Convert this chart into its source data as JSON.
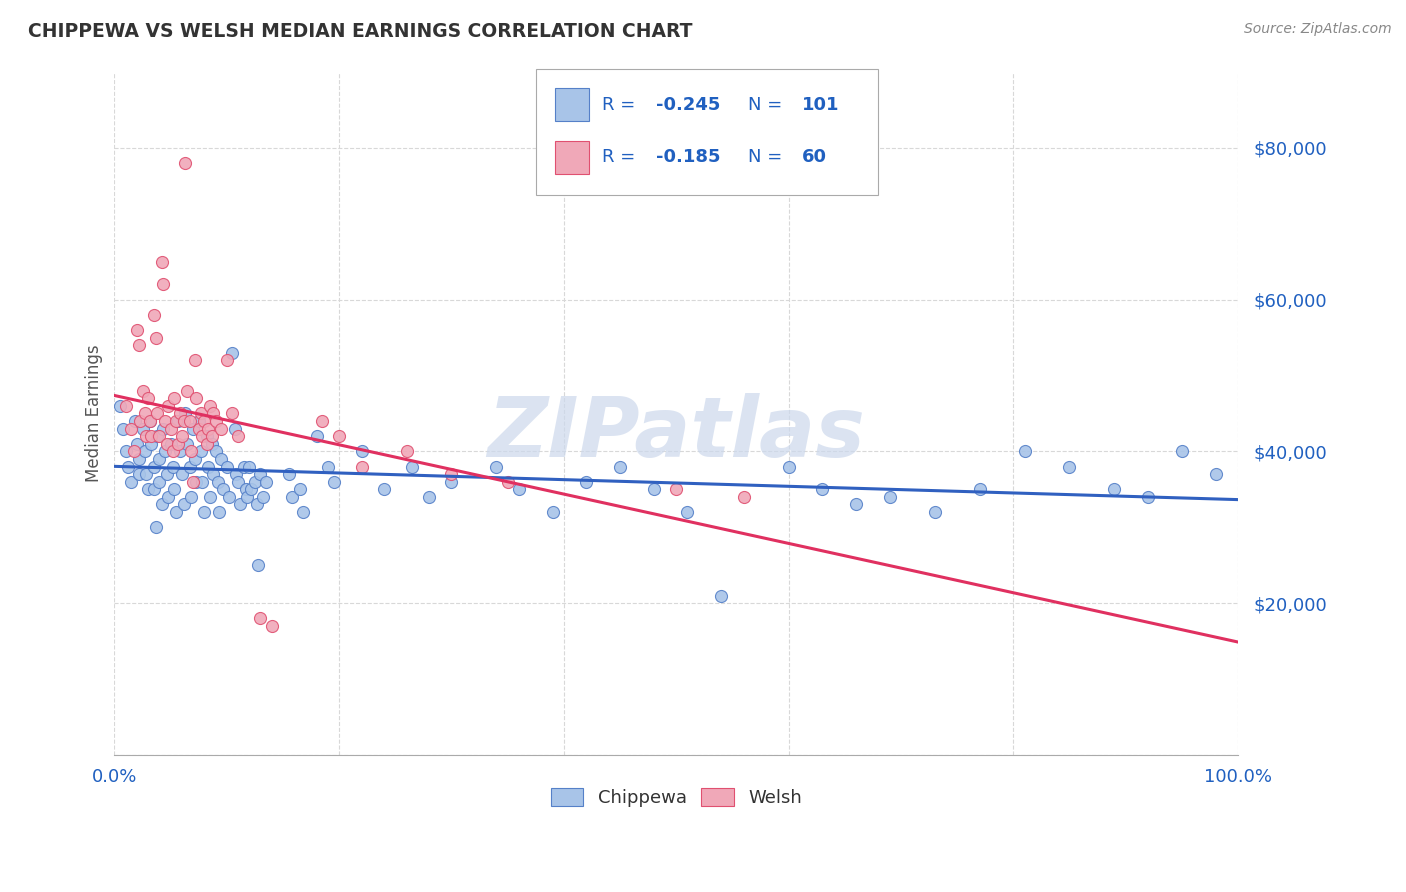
{
  "title": "CHIPPEWA VS WELSH MEDIAN EARNINGS CORRELATION CHART",
  "source": "Source: ZipAtlas.com",
  "ylabel": "Median Earnings",
  "background_color": "#ffffff",
  "grid_color": "#d8d8d8",
  "chippewa_fill": "#a8c4e8",
  "chippewa_edge": "#5580c8",
  "welsh_fill": "#f0a8b8",
  "welsh_edge": "#e05070",
  "chippewa_line_color": "#3060c0",
  "welsh_line_color": "#e03060",
  "title_color": "#333333",
  "source_color": "#888888",
  "ytick_color": "#2060c0",
  "xtick_color": "#2060c0",
  "watermark": "ZIPatlas",
  "watermark_color": "#ccd8ec",
  "chippewa_points": [
    [
      0.005,
      46000
    ],
    [
      0.008,
      43000
    ],
    [
      0.01,
      40000
    ],
    [
      0.012,
      38000
    ],
    [
      0.015,
      36000
    ],
    [
      0.018,
      44000
    ],
    [
      0.02,
      41000
    ],
    [
      0.022,
      39000
    ],
    [
      0.022,
      37000
    ],
    [
      0.025,
      43000
    ],
    [
      0.027,
      40000
    ],
    [
      0.028,
      37000
    ],
    [
      0.03,
      35000
    ],
    [
      0.032,
      44000
    ],
    [
      0.033,
      41000
    ],
    [
      0.035,
      38000
    ],
    [
      0.035,
      35000
    ],
    [
      0.037,
      30000
    ],
    [
      0.038,
      42000
    ],
    [
      0.04,
      39000
    ],
    [
      0.04,
      36000
    ],
    [
      0.042,
      33000
    ],
    [
      0.043,
      43000
    ],
    [
      0.045,
      40000
    ],
    [
      0.047,
      37000
    ],
    [
      0.048,
      34000
    ],
    [
      0.05,
      41000
    ],
    [
      0.052,
      38000
    ],
    [
      0.053,
      35000
    ],
    [
      0.055,
      32000
    ],
    [
      0.057,
      44000
    ],
    [
      0.058,
      40000
    ],
    [
      0.06,
      37000
    ],
    [
      0.062,
      33000
    ],
    [
      0.063,
      45000
    ],
    [
      0.065,
      41000
    ],
    [
      0.067,
      38000
    ],
    [
      0.068,
      34000
    ],
    [
      0.07,
      43000
    ],
    [
      0.072,
      39000
    ],
    [
      0.073,
      36000
    ],
    [
      0.075,
      44000
    ],
    [
      0.077,
      40000
    ],
    [
      0.078,
      36000
    ],
    [
      0.08,
      32000
    ],
    [
      0.082,
      42000
    ],
    [
      0.083,
      38000
    ],
    [
      0.085,
      34000
    ],
    [
      0.087,
      41000
    ],
    [
      0.088,
      37000
    ],
    [
      0.09,
      40000
    ],
    [
      0.092,
      36000
    ],
    [
      0.093,
      32000
    ],
    [
      0.095,
      39000
    ],
    [
      0.097,
      35000
    ],
    [
      0.1,
      38000
    ],
    [
      0.102,
      34000
    ],
    [
      0.105,
      53000
    ],
    [
      0.107,
      43000
    ],
    [
      0.108,
      37000
    ],
    [
      0.11,
      36000
    ],
    [
      0.112,
      33000
    ],
    [
      0.115,
      38000
    ],
    [
      0.117,
      35000
    ],
    [
      0.118,
      34000
    ],
    [
      0.12,
      38000
    ],
    [
      0.122,
      35000
    ],
    [
      0.125,
      36000
    ],
    [
      0.127,
      33000
    ],
    [
      0.128,
      25000
    ],
    [
      0.13,
      37000
    ],
    [
      0.132,
      34000
    ],
    [
      0.135,
      36000
    ],
    [
      0.155,
      37000
    ],
    [
      0.158,
      34000
    ],
    [
      0.165,
      35000
    ],
    [
      0.168,
      32000
    ],
    [
      0.18,
      42000
    ],
    [
      0.19,
      38000
    ],
    [
      0.195,
      36000
    ],
    [
      0.22,
      40000
    ],
    [
      0.24,
      35000
    ],
    [
      0.265,
      38000
    ],
    [
      0.28,
      34000
    ],
    [
      0.3,
      36000
    ],
    [
      0.34,
      38000
    ],
    [
      0.36,
      35000
    ],
    [
      0.39,
      32000
    ],
    [
      0.42,
      36000
    ],
    [
      0.45,
      38000
    ],
    [
      0.48,
      35000
    ],
    [
      0.51,
      32000
    ],
    [
      0.54,
      21000
    ],
    [
      0.6,
      38000
    ],
    [
      0.63,
      35000
    ],
    [
      0.66,
      33000
    ],
    [
      0.69,
      34000
    ],
    [
      0.73,
      32000
    ],
    [
      0.77,
      35000
    ],
    [
      0.81,
      40000
    ],
    [
      0.85,
      38000
    ],
    [
      0.89,
      35000
    ],
    [
      0.92,
      34000
    ],
    [
      0.95,
      40000
    ],
    [
      0.98,
      37000
    ]
  ],
  "welsh_points": [
    [
      0.01,
      46000
    ],
    [
      0.015,
      43000
    ],
    [
      0.017,
      40000
    ],
    [
      0.02,
      56000
    ],
    [
      0.022,
      54000
    ],
    [
      0.023,
      44000
    ],
    [
      0.025,
      48000
    ],
    [
      0.027,
      45000
    ],
    [
      0.028,
      42000
    ],
    [
      0.03,
      47000
    ],
    [
      0.032,
      44000
    ],
    [
      0.033,
      42000
    ],
    [
      0.035,
      58000
    ],
    [
      0.037,
      55000
    ],
    [
      0.038,
      45000
    ],
    [
      0.04,
      42000
    ],
    [
      0.042,
      65000
    ],
    [
      0.043,
      62000
    ],
    [
      0.045,
      44000
    ],
    [
      0.047,
      41000
    ],
    [
      0.048,
      46000
    ],
    [
      0.05,
      43000
    ],
    [
      0.052,
      40000
    ],
    [
      0.053,
      47000
    ],
    [
      0.055,
      44000
    ],
    [
      0.057,
      41000
    ],
    [
      0.058,
      45000
    ],
    [
      0.06,
      42000
    ],
    [
      0.062,
      44000
    ],
    [
      0.063,
      78000
    ],
    [
      0.065,
      48000
    ],
    [
      0.067,
      44000
    ],
    [
      0.068,
      40000
    ],
    [
      0.07,
      36000
    ],
    [
      0.072,
      52000
    ],
    [
      0.073,
      47000
    ],
    [
      0.075,
      43000
    ],
    [
      0.077,
      45000
    ],
    [
      0.078,
      42000
    ],
    [
      0.08,
      44000
    ],
    [
      0.082,
      41000
    ],
    [
      0.083,
      43000
    ],
    [
      0.085,
      46000
    ],
    [
      0.087,
      42000
    ],
    [
      0.088,
      45000
    ],
    [
      0.09,
      44000
    ],
    [
      0.095,
      43000
    ],
    [
      0.1,
      52000
    ],
    [
      0.105,
      45000
    ],
    [
      0.11,
      42000
    ],
    [
      0.13,
      18000
    ],
    [
      0.14,
      17000
    ],
    [
      0.185,
      44000
    ],
    [
      0.2,
      42000
    ],
    [
      0.22,
      38000
    ],
    [
      0.26,
      40000
    ],
    [
      0.3,
      37000
    ],
    [
      0.35,
      36000
    ],
    [
      0.5,
      35000
    ],
    [
      0.56,
      34000
    ]
  ]
}
